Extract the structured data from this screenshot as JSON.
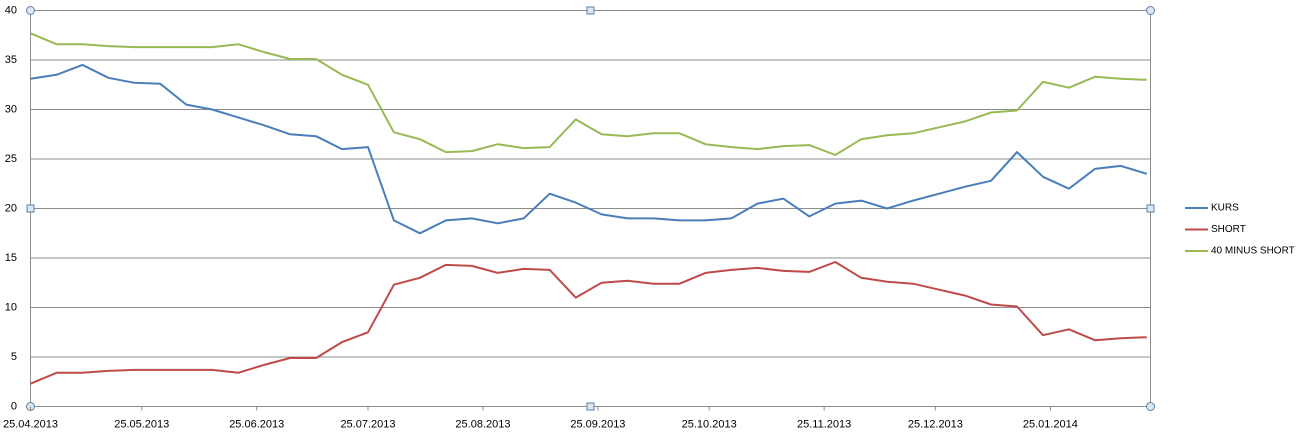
{
  "chart_data": {
    "type": "line",
    "x": [
      "25.04.2013",
      "02.05.2013",
      "09.05.2013",
      "16.05.2013",
      "23.05.2013",
      "30.05.2013",
      "06.06.2013",
      "13.06.2013",
      "20.06.2013",
      "27.06.2013",
      "04.07.2013",
      "11.07.2013",
      "18.07.2013",
      "25.07.2013",
      "01.08.2013",
      "08.08.2013",
      "15.08.2013",
      "22.08.2013",
      "29.08.2013",
      "05.09.2013",
      "12.09.2013",
      "19.09.2013",
      "26.09.2013",
      "03.10.2013",
      "10.10.2013",
      "17.10.2013",
      "24.10.2013",
      "31.10.2013",
      "07.11.2013",
      "14.11.2013",
      "21.11.2013",
      "28.11.2013",
      "05.12.2013",
      "12.12.2013",
      "19.12.2013",
      "26.12.2013",
      "02.01.2014",
      "09.01.2014",
      "16.01.2014",
      "23.01.2014",
      "30.01.2014",
      "06.02.2014",
      "13.02.2014",
      "20.02.2014"
    ],
    "series": [
      {
        "name": "KURS",
        "color": "#4a7ebb",
        "values": [
          33.1,
          33.5,
          34.5,
          33.2,
          32.7,
          32.6,
          30.5,
          30.0,
          29.2,
          28.4,
          27.5,
          27.3,
          26.0,
          26.2,
          18.8,
          17.5,
          18.8,
          19.0,
          18.5,
          19.0,
          21.5,
          20.6,
          19.4,
          19.0,
          19.0,
          18.8,
          18.8,
          19.0,
          20.5,
          21.0,
          19.2,
          20.5,
          20.8,
          20.0,
          20.8,
          21.5,
          22.2,
          22.8,
          25.7,
          23.2,
          22.0,
          24.0,
          24.3,
          23.5
        ]
      },
      {
        "name": "SHORT",
        "color": "#be4b48",
        "values": [
          2.3,
          3.4,
          3.4,
          3.6,
          3.7,
          3.7,
          3.7,
          3.7,
          3.4,
          4.2,
          4.9,
          4.9,
          6.5,
          7.5,
          12.3,
          13.0,
          14.3,
          14.2,
          13.5,
          13.9,
          13.8,
          11.0,
          12.5,
          12.7,
          12.4,
          12.4,
          13.5,
          13.8,
          14.0,
          13.7,
          13.6,
          14.6,
          13.0,
          12.6,
          12.4,
          11.8,
          11.2,
          10.3,
          10.1,
          7.2,
          7.8,
          6.7,
          6.9,
          7.0
        ]
      },
      {
        "name": "40 MINUS SHORT",
        "color": "#98b954",
        "values": [
          37.7,
          36.6,
          36.6,
          36.4,
          36.3,
          36.3,
          36.3,
          36.3,
          36.6,
          35.8,
          35.1,
          35.1,
          33.5,
          32.5,
          27.7,
          27.0,
          25.7,
          25.8,
          26.5,
          26.1,
          26.2,
          29.0,
          27.5,
          27.3,
          27.6,
          27.6,
          26.5,
          26.2,
          26.0,
          26.3,
          26.4,
          25.4,
          27.0,
          27.4,
          27.6,
          28.2,
          28.8,
          29.7,
          29.9,
          32.8,
          32.2,
          33.3,
          33.1,
          33.0
        ]
      }
    ],
    "xlim": [
      "25.04.2013",
      "21.02.2014"
    ],
    "xticks": [
      "25.04.2013",
      "25.05.2013",
      "25.06.2013",
      "25.07.2013",
      "25.08.2013",
      "25.09.2013",
      "25.10.2013",
      "25.11.2013",
      "25.12.2013",
      "25.01.2014"
    ],
    "ylim": [
      0,
      40
    ],
    "yticks": [
      0,
      5,
      10,
      15,
      20,
      25,
      30,
      35,
      40
    ],
    "grid": true,
    "legend": "right"
  }
}
